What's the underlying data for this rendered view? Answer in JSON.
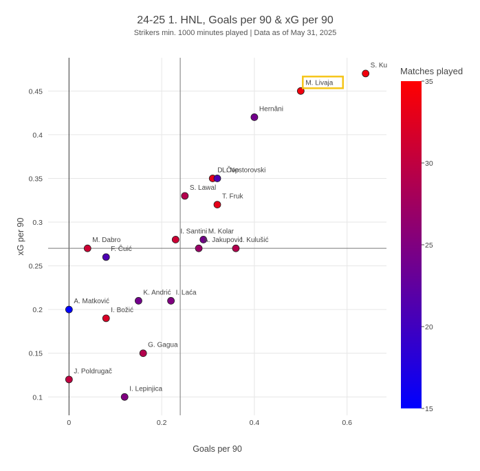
{
  "title": "24-25 1. HNL, Goals per 90 & xG per 90",
  "subtitle": "Strikers min. 1000 minutes played | Data as of May 31, 2025",
  "chart_data": {
    "type": "scatter",
    "title": "24-25 1. HNL, Goals per 90 & xG per 90",
    "subtitle": "Strikers min. 1000 minutes played | Data as of May 31, 2025",
    "xlabel": "Goals per 90",
    "ylabel": "xG per 90",
    "xlim": [
      -0.045,
      0.685
    ],
    "ylim": [
      0.079,
      0.488
    ],
    "x_ticks": [
      "0",
      "0.2",
      "0.4",
      "0.6"
    ],
    "x_tick_values": [
      0,
      0.2,
      0.4,
      0.6
    ],
    "y_ticks": [
      "0.1",
      "0.15",
      "0.2",
      "0.25",
      "0.3",
      "0.35",
      "0.4",
      "0.45"
    ],
    "y_tick_values": [
      0.1,
      0.15,
      0.2,
      0.25,
      0.3,
      0.35,
      0.4,
      0.45
    ],
    "reference_lines": {
      "x_avg": 0.24,
      "y_avg": 0.27
    },
    "colorbar": {
      "title": "Matches played",
      "min": 15,
      "max": 35,
      "ticks": [
        "15",
        "20",
        "25",
        "30",
        "35"
      ],
      "tick_values": [
        15,
        20,
        25,
        30,
        35
      ],
      "colors": [
        "#0000ff",
        "#ff0000"
      ]
    },
    "grid": true,
    "highlight": {
      "name": "M. Livaja",
      "color": "#f5c518"
    },
    "points": [
      {
        "name": "S. Ku",
        "x": 0.64,
        "y": 0.47,
        "matches": 34
      },
      {
        "name": "M. Livaja",
        "x": 0.5,
        "y": 0.45,
        "matches": 34
      },
      {
        "name": "Hernâni",
        "x": 0.4,
        "y": 0.42,
        "matches": 24
      },
      {
        "name": "D. Čop",
        "x": 0.31,
        "y": 0.35,
        "matches": 33
      },
      {
        "name": "L. Nestorovski",
        "x": 0.32,
        "y": 0.35,
        "matches": 21
      },
      {
        "name": "S. Lawal",
        "x": 0.25,
        "y": 0.33,
        "matches": 29
      },
      {
        "name": "T. Fruk",
        "x": 0.32,
        "y": 0.32,
        "matches": 33
      },
      {
        "name": "I. Santini",
        "x": 0.23,
        "y": 0.28,
        "matches": 31
      },
      {
        "name": "M. Kolar",
        "x": 0.29,
        "y": 0.28,
        "matches": 24
      },
      {
        "name": "A. Jakupović",
        "x": 0.28,
        "y": 0.27,
        "matches": 27
      },
      {
        "name": "I. Kulušić",
        "x": 0.36,
        "y": 0.27,
        "matches": 29
      },
      {
        "name": "M. Dabro",
        "x": 0.04,
        "y": 0.27,
        "matches": 31
      },
      {
        "name": "F. Čuić",
        "x": 0.08,
        "y": 0.26,
        "matches": 21
      },
      {
        "name": "K. Andrić",
        "x": 0.15,
        "y": 0.21,
        "matches": 24
      },
      {
        "name": "I. Laća",
        "x": 0.22,
        "y": 0.21,
        "matches": 25
      },
      {
        "name": "A. Matković",
        "x": 0.0,
        "y": 0.2,
        "matches": 15
      },
      {
        "name": "I. Božić",
        "x": 0.08,
        "y": 0.19,
        "matches": 32
      },
      {
        "name": "G. Gagua",
        "x": 0.16,
        "y": 0.15,
        "matches": 29
      },
      {
        "name": "J. Poldrugač",
        "x": 0.0,
        "y": 0.12,
        "matches": 30
      },
      {
        "name": "I. Lepinjica",
        "x": 0.12,
        "y": 0.1,
        "matches": 25
      }
    ]
  }
}
